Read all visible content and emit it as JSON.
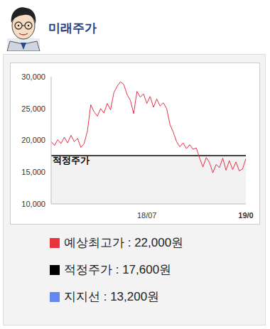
{
  "chart_data": {
    "type": "line",
    "title": "미래주가",
    "categories": [
      null,
      null,
      null,
      null,
      null,
      null,
      null,
      null,
      null,
      null,
      null,
      null,
      null,
      null,
      null,
      null,
      null,
      null,
      null,
      null,
      null,
      null,
      null,
      null,
      null,
      null,
      null,
      null,
      null,
      "18/07",
      null,
      null,
      null,
      null,
      null,
      null,
      null,
      null,
      null,
      null,
      null,
      null,
      null,
      null,
      null,
      null,
      null,
      null,
      null,
      null,
      null,
      null,
      null,
      null,
      null,
      null,
      null,
      null,
      null,
      "19/0"
    ],
    "values": [
      19800,
      19200,
      20100,
      19500,
      20500,
      19600,
      20800,
      19800,
      20300,
      18900,
      19500,
      21500,
      25600,
      24500,
      23800,
      25000,
      24300,
      25800,
      24800,
      27500,
      28500,
      29200,
      28800,
      27200,
      26300,
      24200,
      27700,
      26800,
      27300,
      25800,
      26900,
      25200,
      26500,
      25400,
      25900,
      25000,
      22500,
      21300,
      19800,
      19000,
      19600,
      18700,
      19300,
      18600,
      18800,
      17200,
      15800,
      17300,
      16500,
      14900,
      16200,
      15700,
      17200,
      15300,
      16800,
      15400,
      16600,
      15200,
      15500,
      17100
    ],
    "color": "#e8304a",
    "ylim": [
      10000,
      30000
    ],
    "yticks": [
      {
        "value": 10000,
        "label": "10,000"
      },
      {
        "value": 15000,
        "label": "15,000"
      },
      {
        "value": 20000,
        "label": "20,000"
      },
      {
        "value": 25000,
        "label": "25,000"
      },
      {
        "value": 30000,
        "label": "30,000"
      }
    ],
    "reference_line": {
      "value": 17600,
      "label": "적정주가"
    },
    "annotations": [
      {
        "label": "예상최고가 : 22,000원",
        "color": "#e8343f"
      },
      {
        "label": "적정주가 : 17,600원",
        "color": "#000000"
      },
      {
        "label": "지지선 : 13,200원",
        "color": "#6688ee"
      }
    ]
  }
}
